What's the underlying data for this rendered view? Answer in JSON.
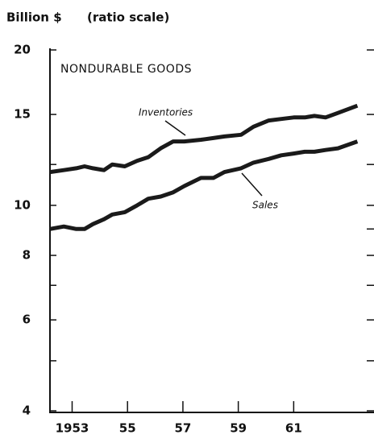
{
  "chart_data": {
    "type": "line",
    "title": "NONDURABLE GOODS",
    "ylabel": "Billion $",
    "scale_note": "(ratio scale)",
    "yscale": "log",
    "x": [
      1952.2,
      1952.7,
      1953.15,
      1953.45,
      1953.75,
      1954.15,
      1954.45,
      1954.9,
      1955.35,
      1955.75,
      1956.2,
      1956.65,
      1957.05,
      1957.65,
      1958.1,
      1958.5,
      1959.1,
      1959.55,
      1960.1,
      1960.55,
      1961.0,
      1961.4,
      1961.75,
      1962.15,
      1962.6,
      1963.3
    ],
    "series": [
      {
        "name": "Inventories",
        "color": "#1a1a1a",
        "values": [
          11.6,
          11.7,
          11.8,
          11.9,
          11.8,
          11.7,
          12.0,
          11.9,
          12.2,
          12.4,
          12.9,
          13.3,
          13.3,
          13.4,
          13.5,
          13.6,
          13.7,
          14.2,
          14.6,
          14.7,
          14.8,
          14.8,
          14.9,
          14.8,
          15.1,
          15.6
        ]
      },
      {
        "name": "Sales",
        "color": "#1a1a1a",
        "values": [
          9.0,
          9.1,
          9.0,
          9.0,
          9.2,
          9.4,
          9.6,
          9.7,
          10.0,
          10.3,
          10.4,
          10.6,
          10.9,
          11.3,
          11.3,
          11.6,
          11.8,
          12.1,
          12.3,
          12.5,
          12.6,
          12.7,
          12.7,
          12.8,
          12.9,
          13.3
        ]
      }
    ],
    "xlim": [
      1952.2,
      1963.9
    ],
    "xticks": [
      {
        "value": 1953,
        "label": "1953"
      },
      {
        "value": 1955,
        "label": "55"
      },
      {
        "value": 1957,
        "label": "57"
      },
      {
        "value": 1959,
        "label": "59"
      },
      {
        "value": 1961,
        "label": "61"
      }
    ],
    "ylim": [
      4,
      20
    ],
    "yticks": [
      4,
      6,
      8,
      10,
      15,
      20
    ],
    "minor_yticks": [
      5,
      7,
      9,
      12
    ],
    "grid": false
  }
}
